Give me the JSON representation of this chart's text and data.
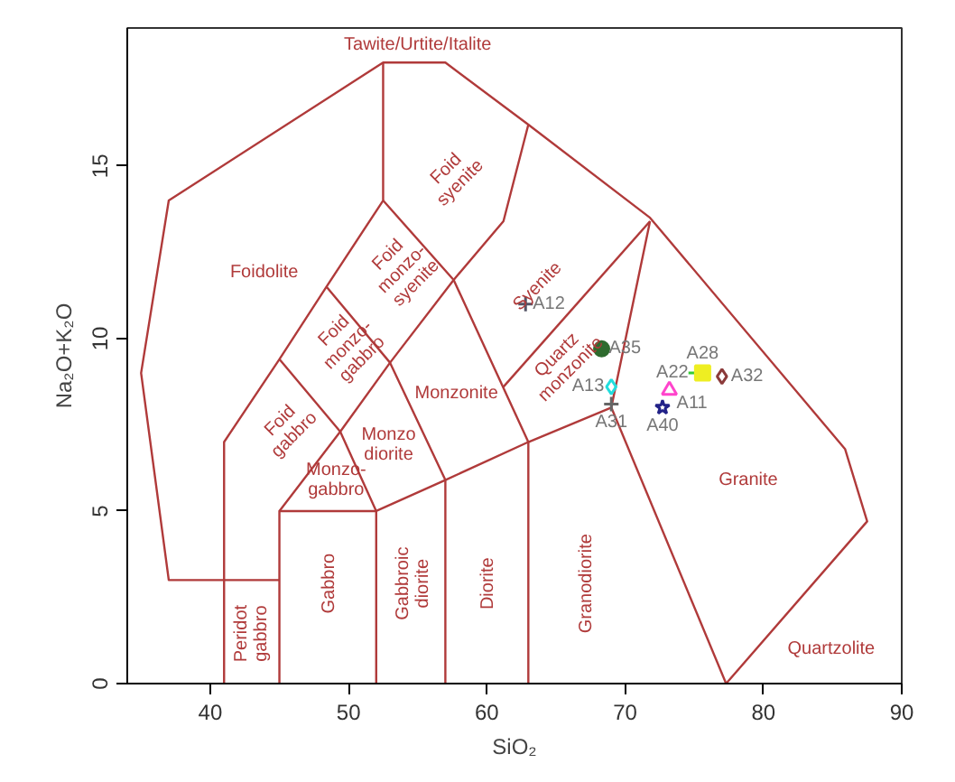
{
  "chart_data": {
    "type": "scatter",
    "xlabel": "SiO₂",
    "ylabel": "Na₂O+K₂O",
    "xlim": [
      34,
      90
    ],
    "ylim": [
      0,
      19
    ],
    "xticks": [
      40,
      50,
      60,
      70,
      80,
      90
    ],
    "yticks": [
      0,
      5,
      10,
      15
    ],
    "grid": false,
    "series": [
      {
        "type": "line",
        "color": "#b03a3a",
        "x": [
          45,
          37,
          35,
          37,
          52.5,
          57,
          63,
          71.8,
          85.9,
          87.5,
          77.3
        ],
        "values": [
          3,
          3,
          9,
          14,
          18,
          18,
          16.2,
          13.5,
          6.8,
          4.7,
          0
        ]
      },
      {
        "type": "line",
        "color": "#b03a3a",
        "x": [
          41,
          41,
          45,
          48.4,
          52.5,
          52.5
        ],
        "values": [
          0,
          7,
          9.4,
          11.5,
          14,
          18
        ]
      },
      {
        "type": "line",
        "color": "#b03a3a",
        "x": [
          52,
          52,
          45,
          45
        ],
        "values": [
          0,
          5,
          5,
          0
        ]
      },
      {
        "type": "line",
        "color": "#b03a3a",
        "x": [
          45,
          49.4,
          53,
          57.6,
          61.2,
          63
        ],
        "values": [
          5,
          7.3,
          9.3,
          11.7,
          13.4,
          16.2
        ]
      },
      {
        "type": "line",
        "color": "#b03a3a",
        "x": [
          52,
          57,
          63,
          69,
          71.8
        ],
        "values": [
          5,
          5.9,
          7,
          8,
          13.4
        ]
      },
      {
        "type": "line",
        "color": "#b03a3a",
        "x": [
          45,
          49.4,
          52
        ],
        "values": [
          9.4,
          7.3,
          5
        ]
      },
      {
        "type": "line",
        "color": "#b03a3a",
        "x": [
          48.4,
          53,
          57,
          57
        ],
        "values": [
          11.5,
          9.3,
          5.9,
          0
        ]
      },
      {
        "type": "line",
        "color": "#b03a3a",
        "x": [
          52.5,
          57.6,
          63,
          63
        ],
        "values": [
          14,
          11.7,
          7,
          0
        ]
      },
      {
        "type": "line",
        "color": "#b03a3a",
        "x": [
          61.2,
          71.8
        ],
        "values": [
          8.6,
          13.4
        ]
      },
      {
        "type": "line",
        "color": "#b03a3a",
        "x": [
          69,
          77.3
        ],
        "values": [
          8,
          0
        ]
      },
      {
        "name": "A12",
        "color": "#555566",
        "marker": "cross",
        "x": [
          62.8
        ],
        "values": [
          11.0
        ]
      },
      {
        "name": "A35",
        "color": "#2e6b2e",
        "marker": "circle",
        "x": [
          68.3
        ],
        "values": [
          9.7
        ]
      },
      {
        "name": "A13",
        "color": "#22dddd",
        "marker": "diamond",
        "x": [
          69.0
        ],
        "values": [
          8.6
        ]
      },
      {
        "name": "A31",
        "color": "#666666",
        "marker": "cross",
        "x": [
          69.0
        ],
        "values": [
          8.1
        ]
      },
      {
        "name": "A22",
        "color": "#33cc33",
        "marker": "cross",
        "x": [
          75.1
        ],
        "values": [
          9.0
        ]
      },
      {
        "name": "A28",
        "color": "#eeee22",
        "marker": "square",
        "x": [
          75.6
        ],
        "values": [
          9.0
        ]
      },
      {
        "name": "A32",
        "color": "#8b3a3a",
        "marker": "diamond",
        "x": [
          77.0
        ],
        "values": [
          8.9
        ]
      },
      {
        "name": "A11",
        "color": "#ff44cc",
        "marker": "triangle",
        "x": [
          73.2
        ],
        "values": [
          8.5
        ]
      },
      {
        "name": "A40",
        "color": "#222288",
        "marker": "star",
        "x": [
          72.7
        ],
        "values": [
          8.0
        ]
      }
    ],
    "annotations": [
      "Tawite/Urtite/Italite",
      "Foidolite",
      "Foid\nsyenite",
      "Foid\nmonzo-\nsyenite",
      "Foid\nmonzo-\ngabbro",
      "Foid\ngabbro",
      "Monzonite",
      "Syenite",
      "Quartz\nmonzonite",
      "Monzo\ndiorite",
      "Monzo-\ngabbro",
      "Granite",
      "Quartzolite",
      "Peridot\ngabbro",
      "Gabbro",
      "Gabbroic\ndiorite",
      "Diorite",
      "Granodiorite"
    ]
  }
}
